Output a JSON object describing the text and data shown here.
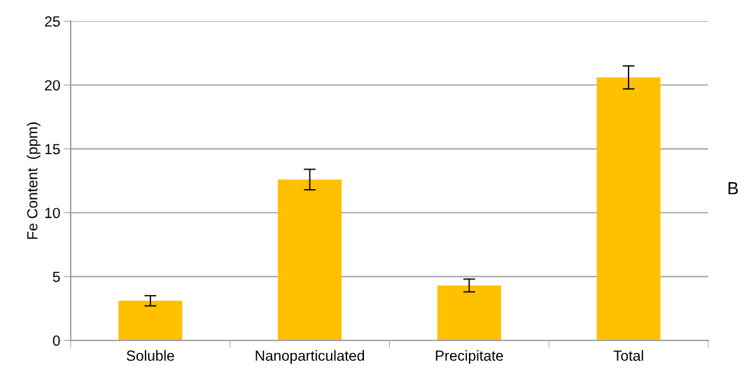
{
  "chart_data": {
    "type": "bar",
    "ylabel": "Fe Content  (ppm)",
    "categories": [
      "Soluble",
      "Nanoparticulated",
      "Precipitate",
      "Total"
    ],
    "values": [
      3.1,
      12.6,
      4.3,
      20.6
    ],
    "errors": [
      0.4,
      0.8,
      0.5,
      0.9
    ],
    "color": "#ffc000",
    "ylim": [
      0,
      25
    ],
    "yticks": [
      0,
      5,
      10,
      15,
      20,
      25
    ],
    "grid": "y",
    "annotations": [
      "B"
    ]
  }
}
